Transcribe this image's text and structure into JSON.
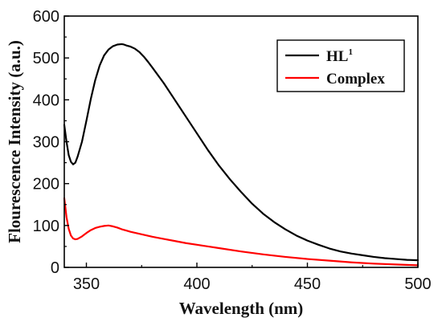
{
  "chart_data": {
    "type": "line",
    "xlabel": "Wavelength (nm)",
    "ylabel": "Flourescence Intensity (a.u.)",
    "xlim": [
      340,
      500
    ],
    "ylim": [
      0,
      600
    ],
    "x_ticks": [
      350,
      400,
      450,
      500
    ],
    "y_ticks": [
      0,
      100,
      200,
      300,
      400,
      500,
      600
    ],
    "grid": false,
    "legend_position": "top-right",
    "series": [
      {
        "name": "HL",
        "name_superscript": "1",
        "color": "#000000",
        "x": [
          340,
          341,
          342,
          343,
          344,
          345,
          346,
          348,
          350,
          352,
          354,
          356,
          358,
          360,
          362,
          364,
          366,
          367,
          368,
          370,
          372,
          374,
          376,
          378,
          380,
          385,
          390,
          395,
          400,
          405,
          410,
          415,
          420,
          425,
          430,
          435,
          440,
          445,
          450,
          455,
          460,
          465,
          470,
          475,
          480,
          485,
          490,
          495,
          500
        ],
        "y": [
          340,
          300,
          268,
          252,
          246,
          250,
          264,
          300,
          350,
          402,
          447,
          482,
          506,
          520,
          528,
          532,
          533,
          532,
          530,
          527,
          522,
          514,
          503,
          490,
          476,
          440,
          400,
          360,
          320,
          280,
          243,
          210,
          180,
          152,
          128,
          108,
          91,
          76,
          64,
          54,
          45,
          38,
          33,
          29,
          25,
          22,
          20,
          18,
          17
        ]
      },
      {
        "name": "Complex",
        "color": "#ff0000",
        "x": [
          340,
          341,
          342,
          343,
          344,
          345,
          346,
          348,
          350,
          352,
          354,
          356,
          358,
          360,
          362,
          364,
          366,
          368,
          370,
          375,
          380,
          385,
          390,
          395,
          400,
          410,
          420,
          430,
          440,
          450,
          460,
          470,
          480,
          490,
          500
        ],
        "y": [
          165,
          120,
          92,
          76,
          69,
          67,
          68,
          74,
          82,
          89,
          94,
          97,
          99,
          100,
          98,
          95,
          91,
          88,
          85,
          79,
          73,
          68,
          63,
          58,
          54,
          46,
          38,
          31,
          25,
          20,
          16,
          12,
          9,
          7,
          5
        ]
      }
    ]
  }
}
